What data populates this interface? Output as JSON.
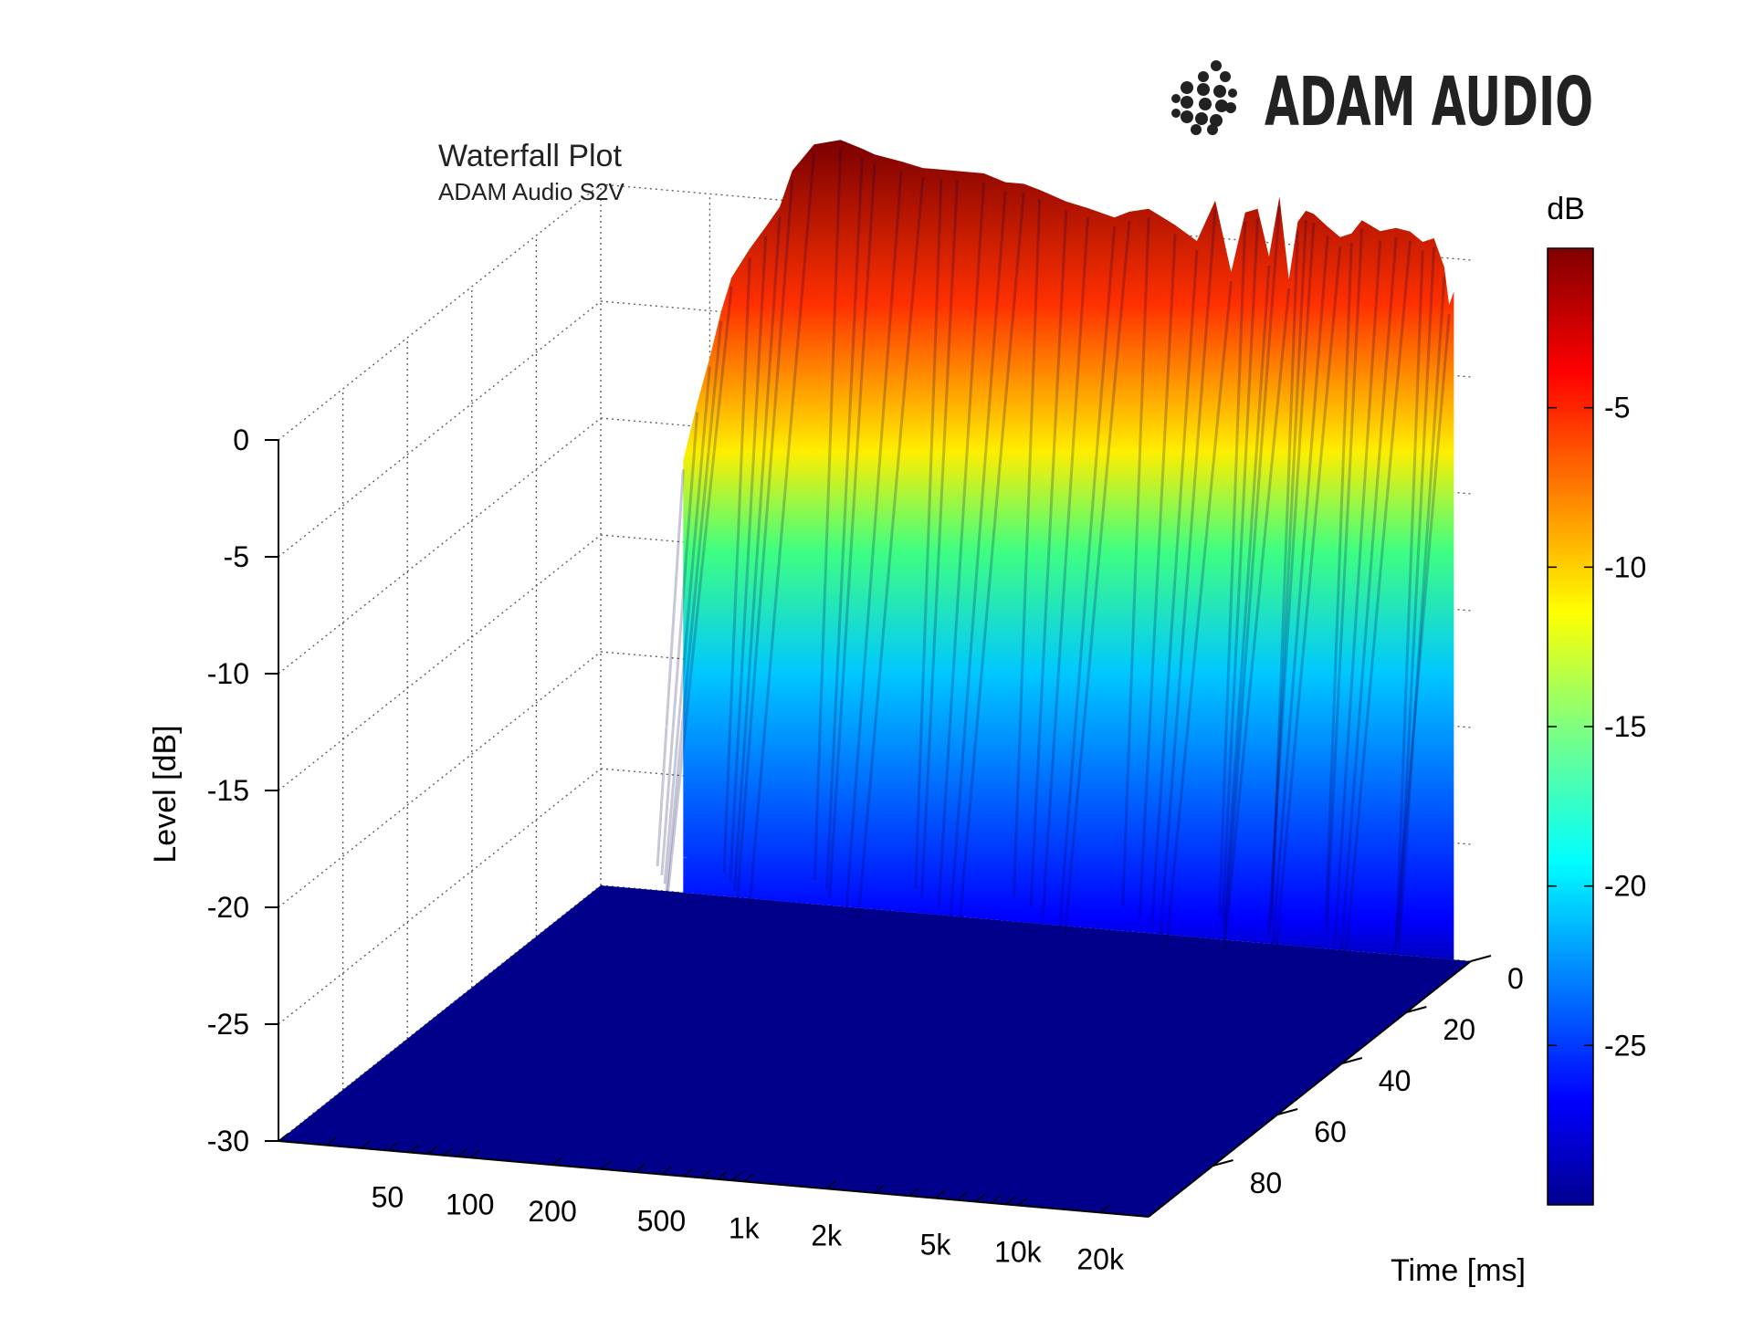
{
  "brand": {
    "name": "ADAM AUDIO",
    "logo_icon": "adam-dots-logo"
  },
  "chart_data": {
    "type": "waterfall",
    "title": "Waterfall Plot",
    "subtitle": "ADAM Audio S2V",
    "zlabel": "Level [dB]",
    "ylabel": "Time [ms]",
    "xlabel": "",
    "colorbar_label": "dB",
    "zlim": [
      -30,
      0
    ],
    "z_ticks": [
      0,
      -5,
      -10,
      -15,
      -20,
      -25,
      -30
    ],
    "x_scale": "log",
    "xlim": [
      20,
      30000
    ],
    "x_ticks": [
      50,
      100,
      200,
      500,
      1000,
      2000,
      5000,
      10000,
      20000
    ],
    "x_tick_labels": [
      "50",
      "100",
      "200",
      "500",
      "1k",
      "2k",
      "5k",
      "10k",
      "20k"
    ],
    "ylim": [
      0,
      100
    ],
    "y_ticks": [
      0,
      20,
      40,
      60,
      80
    ],
    "colorbar_range": [
      -30,
      0
    ],
    "colorbar_ticks": [
      -5,
      -10,
      -15,
      -20,
      -25
    ],
    "colormap": "jet",
    "grid": true,
    "front_slice_time_ms": 0,
    "front_slice": {
      "frequency_hz": [
        40,
        45,
        50,
        55,
        60,
        70,
        80,
        90,
        100,
        120,
        150,
        180,
        200,
        250,
        300,
        350,
        400,
        500,
        600,
        700,
        800,
        1000,
        1200,
        1500,
        1700,
        2000,
        2500,
        3000,
        3500,
        4000,
        4500,
        5000,
        5500,
        6000,
        6500,
        7000,
        7500,
        8000,
        9000,
        10000,
        11000,
        12000,
        14000,
        16000,
        18000,
        20000,
        22000,
        24000,
        25000,
        26000
      ],
      "level_db": [
        -11.5,
        -9.0,
        -7.0,
        -5.0,
        -3.5,
        -2.2,
        -1.2,
        -0.3,
        1.3,
        2.5,
        2.8,
        2.5,
        2.3,
        2.1,
        1.9,
        1.9,
        1.9,
        1.9,
        1.6,
        1.6,
        1.4,
        1.0,
        0.8,
        0.5,
        0.8,
        1.0,
        0.4,
        -0.2,
        1.6,
        -1.4,
        1.2,
        1.4,
        -0.6,
        2.0,
        -1.5,
        1.0,
        1.5,
        1.4,
        0.9,
        0.5,
        0.7,
        1.3,
        0.9,
        1.1,
        1.0,
        0.6,
        0.8,
        -0.4,
        -2.0,
        -1.4
      ]
    },
    "decay_floor_db": -30
  }
}
